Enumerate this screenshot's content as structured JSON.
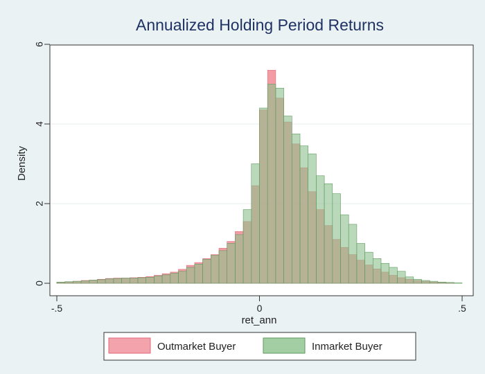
{
  "chart_data": {
    "type": "bar",
    "title": "Annualized Holding Period Returns",
    "xlabel": "ret_ann",
    "ylabel": "Density",
    "xlim": [
      -0.5,
      0.5
    ],
    "ylim": [
      0,
      6
    ],
    "x_ticks": [
      {
        "value": -0.5,
        "label": "-.5"
      },
      {
        "value": 0,
        "label": "0"
      },
      {
        "value": 0.5,
        "label": ".5"
      }
    ],
    "y_ticks": [
      {
        "value": 0,
        "label": "0"
      },
      {
        "value": 2,
        "label": "2"
      },
      {
        "value": 4,
        "label": "4"
      },
      {
        "value": 6,
        "label": "6"
      }
    ],
    "grid": true,
    "legend_position": "bottom",
    "bin_width": 0.02,
    "bin_starts": [
      -0.5,
      -0.48,
      -0.46,
      -0.44,
      -0.42,
      -0.4,
      -0.38,
      -0.36,
      -0.34,
      -0.32,
      -0.3,
      -0.28,
      -0.26,
      -0.24,
      -0.22,
      -0.2,
      -0.18,
      -0.16,
      -0.14,
      -0.12,
      -0.1,
      -0.08,
      -0.06,
      -0.04,
      -0.02,
      0.0,
      0.02,
      0.04,
      0.06,
      0.08,
      0.1,
      0.12,
      0.14,
      0.16,
      0.18,
      0.2,
      0.22,
      0.24,
      0.26,
      0.28,
      0.3,
      0.32,
      0.34,
      0.36,
      0.38,
      0.4,
      0.42,
      0.44,
      0.46,
      0.48
    ],
    "series": [
      {
        "name": "Outmarket Buyer",
        "color": "#f08c96",
        "values": [
          0.02,
          0.03,
          0.05,
          0.07,
          0.08,
          0.1,
          0.12,
          0.13,
          0.13,
          0.14,
          0.15,
          0.17,
          0.2,
          0.24,
          0.28,
          0.35,
          0.45,
          0.52,
          0.62,
          0.72,
          0.88,
          1.05,
          1.3,
          1.55,
          2.45,
          4.35,
          5.35,
          4.65,
          4.05,
          3.5,
          2.9,
          2.3,
          1.85,
          1.45,
          1.1,
          0.9,
          0.72,
          0.58,
          0.46,
          0.36,
          0.28,
          0.2,
          0.14,
          0.1,
          0.07,
          0.05,
          0.03,
          0.02,
          0.01,
          0.0
        ]
      },
      {
        "name": "Inmarket Buyer",
        "color": "#8cc08c",
        "values": [
          0.03,
          0.04,
          0.05,
          0.06,
          0.08,
          0.09,
          0.11,
          0.12,
          0.13,
          0.13,
          0.14,
          0.15,
          0.18,
          0.21,
          0.25,
          0.3,
          0.4,
          0.48,
          0.6,
          0.7,
          0.82,
          1.0,
          1.22,
          1.85,
          3.0,
          4.4,
          5.0,
          4.9,
          4.2,
          3.75,
          3.45,
          3.25,
          2.7,
          2.5,
          2.25,
          1.72,
          1.48,
          1.0,
          0.78,
          0.62,
          0.5,
          0.4,
          0.3,
          0.16,
          0.1,
          0.07,
          0.05,
          0.03,
          0.02,
          0.01
        ]
      }
    ]
  }
}
